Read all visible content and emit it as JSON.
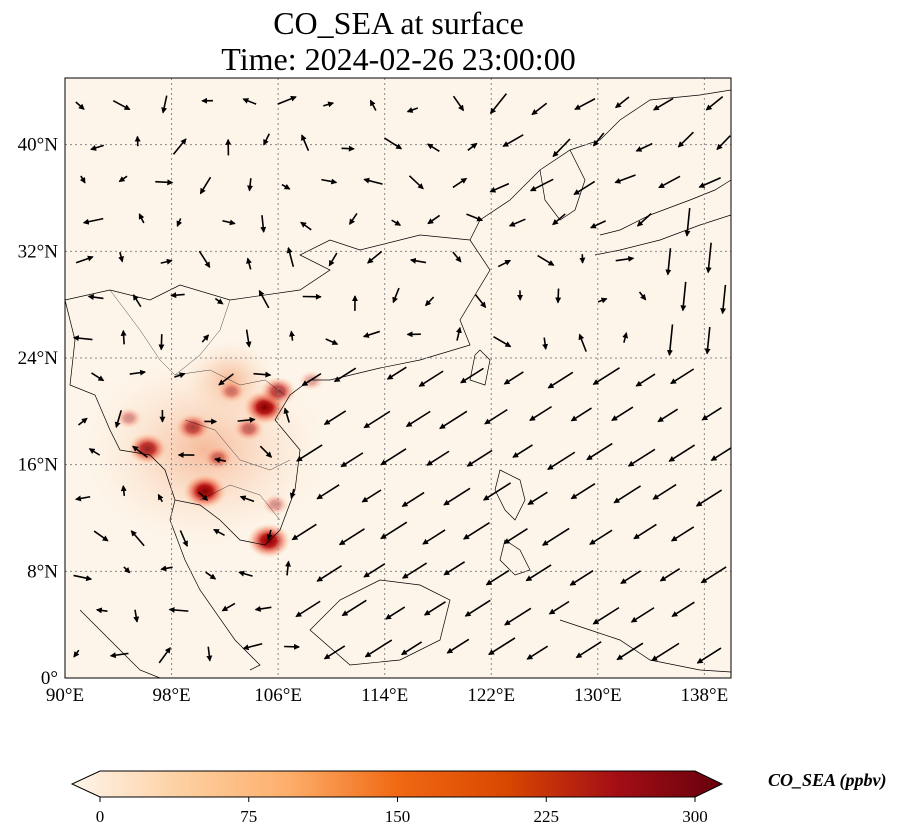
{
  "title": "CO_SEA at surface",
  "subtitle": "Time: 2024-02-26 23:00:00",
  "map": {
    "lon_range": [
      90,
      140
    ],
    "lat_range": [
      0,
      45
    ],
    "lon_ticks": [
      {
        "value": 90,
        "label": "90°E"
      },
      {
        "value": 98,
        "label": "98°E"
      },
      {
        "value": 106,
        "label": "106°E"
      },
      {
        "value": 114,
        "label": "114°E"
      },
      {
        "value": 122,
        "label": "122°E"
      },
      {
        "value": 130,
        "label": "130°E"
      },
      {
        "value": 138,
        "label": "138°E"
      }
    ],
    "lat_ticks": [
      {
        "value": 0,
        "label": "0°"
      },
      {
        "value": 8,
        "label": "8°N"
      },
      {
        "value": 16,
        "label": "16°N"
      },
      {
        "value": 24,
        "label": "24°N"
      },
      {
        "value": 32,
        "label": "32°N"
      },
      {
        "value": 40,
        "label": "40°N"
      }
    ],
    "hotspots": [
      {
        "lon": 105.3,
        "lat": 10.3,
        "level": 1.0
      },
      {
        "lon": 100.5,
        "lat": 14.0,
        "level": 1.0
      },
      {
        "lon": 105.0,
        "lat": 20.3,
        "level": 1.0
      },
      {
        "lon": 106.0,
        "lat": 21.5,
        "level": 0.75
      },
      {
        "lon": 96.2,
        "lat": 17.2,
        "level": 0.85
      },
      {
        "lon": 99.6,
        "lat": 18.8,
        "level": 0.7
      },
      {
        "lon": 103.8,
        "lat": 18.7,
        "level": 0.55
      },
      {
        "lon": 101.5,
        "lat": 16.5,
        "level": 0.5
      },
      {
        "lon": 102.5,
        "lat": 21.5,
        "level": 0.45
      },
      {
        "lon": 94.8,
        "lat": 19.5,
        "level": 0.4
      },
      {
        "lon": 105.8,
        "lat": 13.0,
        "level": 0.4
      },
      {
        "lon": 108.5,
        "lat": 22.3,
        "level": 0.35
      }
    ]
  },
  "colorbar": {
    "label": "CO_SEA (ppbv)",
    "min": 0,
    "max": 300,
    "ticks": [
      "0",
      "75",
      "150",
      "225",
      "300"
    ],
    "colors": [
      "#fff5eb",
      "#fdd0a2",
      "#fdae6b",
      "#f16913",
      "#d94801",
      "#a50f15",
      "#67000d"
    ]
  }
}
